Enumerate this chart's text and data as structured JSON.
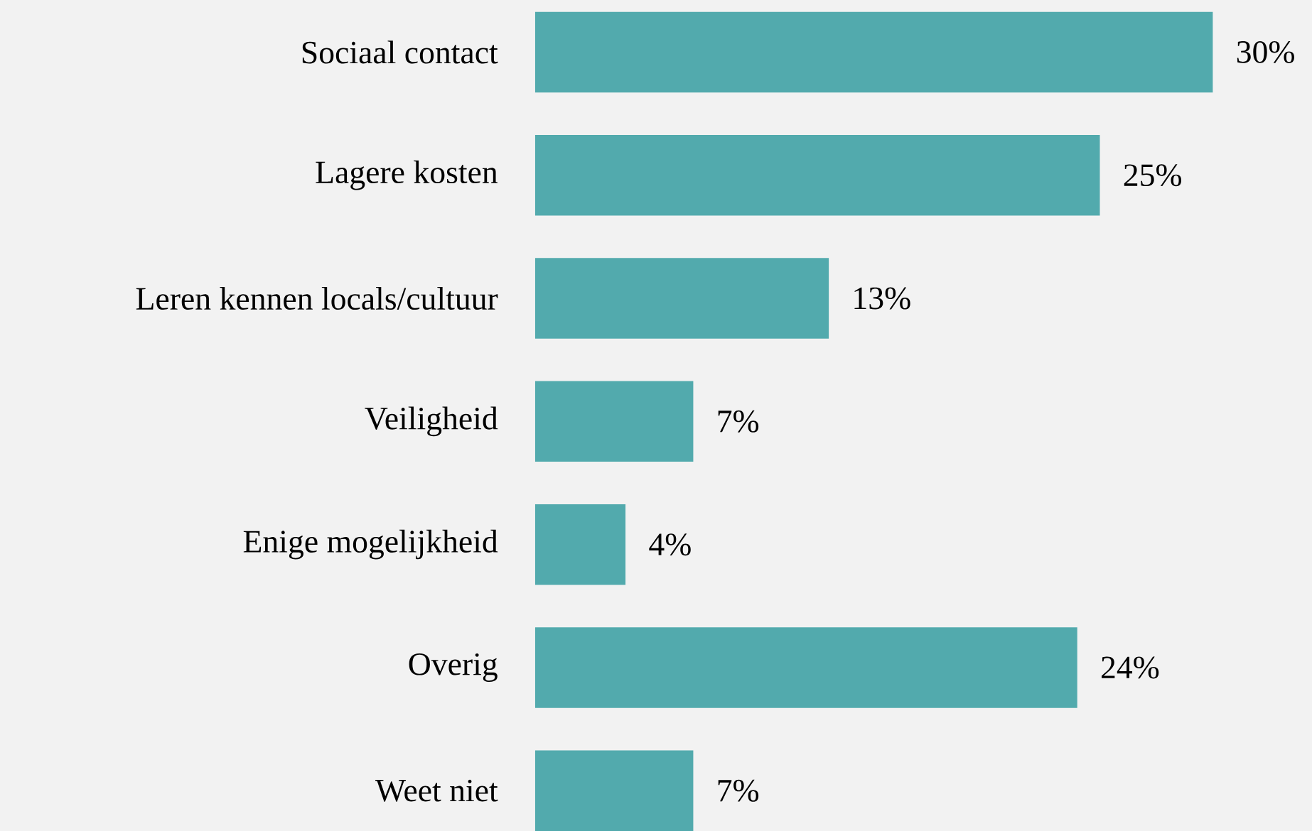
{
  "chart_data": {
    "type": "bar",
    "orientation": "horizontal",
    "categories": [
      "Sociaal contact",
      "Lagere kosten",
      "Leren kennen locals/cultuur",
      "Veiligheid",
      "Enige mogelijkheid",
      "Overig",
      "Weet niet"
    ],
    "values": [
      30,
      25,
      13,
      7,
      4,
      24,
      7
    ],
    "value_labels": [
      "30%",
      "25%",
      "13%",
      "7%",
      "4%",
      "24%",
      "7%"
    ],
    "color": "#52aaad"
  }
}
